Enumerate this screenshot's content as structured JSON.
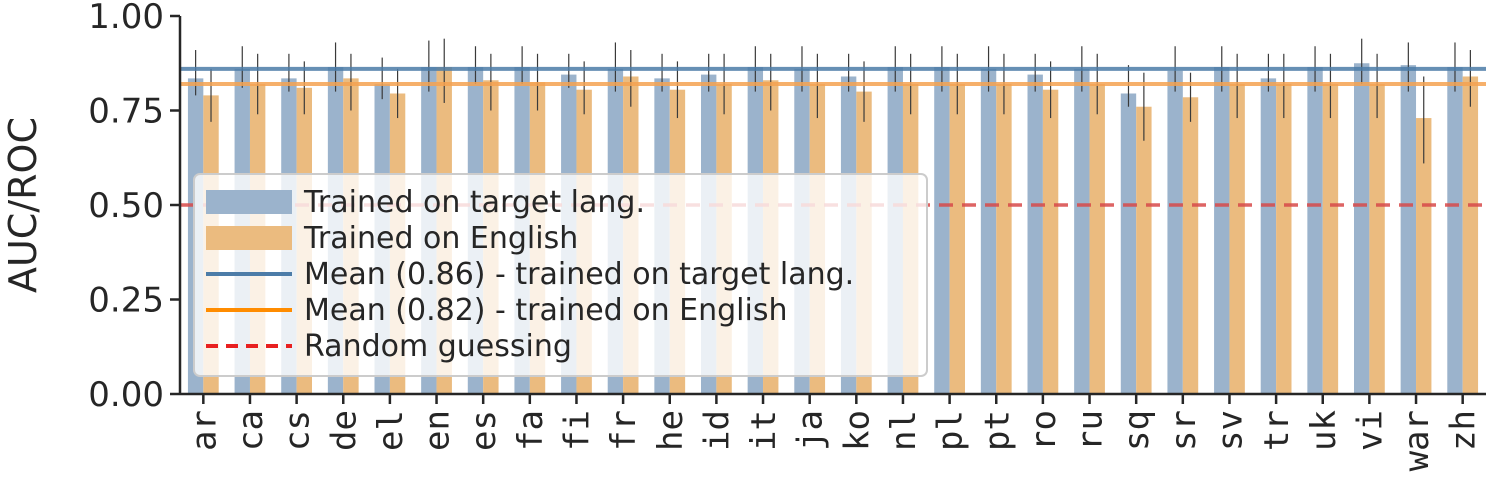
{
  "chart_data": {
    "type": "bar",
    "ylabel": "AUC/ROC",
    "xlabel": "",
    "ylim": [
      0,
      1
    ],
    "yticks": [
      "0.00",
      "0.25",
      "0.50",
      "0.75",
      "1.00"
    ],
    "ytick_values": [
      0,
      0.25,
      0.5,
      0.75,
      1.0
    ],
    "categories": [
      "ar",
      "ca",
      "cs",
      "de",
      "el",
      "en",
      "es",
      "fa",
      "fi",
      "fr",
      "he",
      "id",
      "it",
      "ja",
      "ko",
      "nl",
      "pl",
      "pt",
      "ro",
      "ru",
      "sq",
      "sr",
      "sv",
      "tr",
      "uk",
      "vi",
      "war",
      "zh"
    ],
    "series": [
      {
        "name": "Trained on target lang.",
        "color": "#9bb3cc",
        "values": [
          0.835,
          0.86,
          0.835,
          0.865,
          0.82,
          0.865,
          0.865,
          0.865,
          0.845,
          0.86,
          0.835,
          0.845,
          0.865,
          0.86,
          0.84,
          0.865,
          0.865,
          0.86,
          0.845,
          0.86,
          0.795,
          0.855,
          0.865,
          0.835,
          0.865,
          0.875,
          0.87,
          0.865
        ],
        "err_low": [
          0.79,
          0.81,
          0.8,
          0.8,
          0.78,
          0.8,
          0.82,
          0.82,
          0.81,
          0.8,
          0.8,
          0.8,
          0.8,
          0.8,
          0.8,
          0.8,
          0.8,
          0.8,
          0.8,
          0.8,
          0.76,
          0.8,
          0.8,
          0.8,
          0.8,
          0.82,
          0.8,
          0.8
        ],
        "err_high": [
          0.91,
          0.92,
          0.9,
          0.93,
          0.89,
          0.935,
          0.92,
          0.92,
          0.9,
          0.93,
          0.9,
          0.9,
          0.92,
          0.92,
          0.9,
          0.92,
          0.92,
          0.92,
          0.9,
          0.92,
          0.87,
          0.92,
          0.92,
          0.9,
          0.92,
          0.94,
          0.93,
          0.93
        ]
      },
      {
        "name": "Trained on English",
        "color": "#ebbb7f",
        "values": [
          0.79,
          0.82,
          0.81,
          0.835,
          0.795,
          0.865,
          0.83,
          0.825,
          0.805,
          0.84,
          0.805,
          0.82,
          0.83,
          0.82,
          0.8,
          0.82,
          0.82,
          0.82,
          0.805,
          0.82,
          0.76,
          0.785,
          0.82,
          0.82,
          0.82,
          0.82,
          0.73,
          0.84
        ],
        "err_low": [
          0.72,
          0.74,
          0.74,
          0.75,
          0.73,
          0.77,
          0.75,
          0.75,
          0.74,
          0.76,
          0.73,
          0.74,
          0.75,
          0.73,
          0.72,
          0.74,
          0.74,
          0.74,
          0.73,
          0.74,
          0.67,
          0.72,
          0.73,
          0.73,
          0.73,
          0.73,
          0.61,
          0.76
        ],
        "err_high": [
          0.86,
          0.9,
          0.88,
          0.9,
          0.86,
          0.94,
          0.9,
          0.9,
          0.88,
          0.91,
          0.88,
          0.9,
          0.9,
          0.9,
          0.88,
          0.9,
          0.9,
          0.9,
          0.88,
          0.9,
          0.85,
          0.85,
          0.9,
          0.9,
          0.9,
          0.9,
          0.84,
          0.91
        ]
      }
    ],
    "reference_lines": [
      {
        "name": "Mean (0.86) - trained on target lang.",
        "value": 0.86,
        "color": "#4c7ca8",
        "style": "solid"
      },
      {
        "name": "Mean (0.82) - trained on English",
        "value": 0.82,
        "color": "#f5a352",
        "style": "solid"
      },
      {
        "name": "Random guessing",
        "value": 0.5,
        "color": "#d84a4a",
        "style": "dashed"
      }
    ],
    "legend": {
      "position": "center-left",
      "items": [
        {
          "label": "Trained on target lang.",
          "kind": "patch",
          "color": "#9bb3cc"
        },
        {
          "label": "Trained on English",
          "kind": "patch",
          "color": "#ebbb7f"
        },
        {
          "label": "Mean (0.86) - trained on target lang.",
          "kind": "line",
          "color": "#4c7ca8"
        },
        {
          "label": "Mean (0.82) - trained on English",
          "kind": "line",
          "color": "#ff8c00"
        },
        {
          "label": "Random guessing",
          "kind": "dashed",
          "color": "#e82020"
        }
      ]
    }
  }
}
